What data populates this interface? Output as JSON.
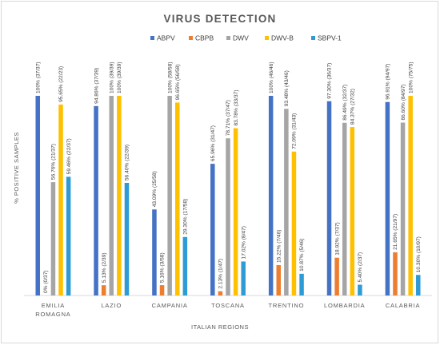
{
  "chart_data": {
    "type": "bar",
    "title": "VIRUS DETECTION",
    "xlabel": "ITALIAN REGIONS",
    "ylabel": "% POSITIVE SAMPLES",
    "ylim": [
      0,
      100
    ],
    "grid": false,
    "legend_position": "top-center",
    "categories": [
      [
        "EMILIA",
        "ROMAGNA"
      ],
      [
        "LAZIO"
      ],
      [
        "CAMPANIA"
      ],
      [
        "TOSCANA"
      ],
      [
        "TRENTINO"
      ],
      [
        "LOMBARDIA"
      ],
      [
        "CALABRIA"
      ]
    ],
    "series": [
      {
        "name": "ABPV",
        "color": "#4472c4",
        "values": [
          100,
          94.86,
          43.09,
          65.96,
          100,
          97.3,
          96.91
        ],
        "labels": [
          "100% (37/37)",
          "94.86% (37/39)",
          "43.09% (25/58)",
          "65.96% (31/47)",
          "100% (46/46)",
          "97.30% (36/37)",
          "96.91% (94/97)"
        ]
      },
      {
        "name": "CBPB",
        "color": "#ed7d31",
        "values": [
          0,
          5.13,
          5.16,
          2.13,
          15.22,
          18.92,
          21.65
        ],
        "labels": [
          "0% (0/37)",
          "5.13% (2/39)",
          "5.16% (3/58)",
          "2.13% (1/47)",
          "15.22% (7/46)",
          "18.92% (7/37)",
          "21.65% (21/97)"
        ]
      },
      {
        "name": "DWV",
        "color": "#a5a5a5",
        "values": [
          56.76,
          100,
          100,
          78.71,
          93.48,
          86.49,
          86.6
        ],
        "labels": [
          "56.76% (21/37)",
          "100% (39/39)",
          "100% (58/58)",
          "78.71% (37/47)",
          "93.48% (43/46)",
          "86.49% (32/37)",
          "86.60% (84/97)"
        ]
      },
      {
        "name": "DWV-B",
        "color": "#ffc000",
        "values": [
          95.65,
          100,
          96.65,
          83.78,
          72.09,
          84.37,
          100
        ],
        "labels": [
          "95.65% (22/23)",
          "100% (39/39)",
          "96.65% (56/58)",
          "83.78% (33/37)",
          "72.09% (31/43)",
          "84.37% (27/32)",
          "100% (75/75)"
        ]
      },
      {
        "name": "SBPV-1",
        "color": "#2e9bd6",
        "values": [
          59.46,
          56.4,
          29.3,
          17.02,
          10.87,
          5.4,
          10.3
        ],
        "labels": [
          "59.46% (22/37)",
          "56.40% (22/39)",
          "29.30% (17/58)",
          "17.02% (8/47)",
          "10.87% (5/46)",
          "5.40% (2/37)",
          "10.30% (10/97)"
        ]
      }
    ]
  }
}
